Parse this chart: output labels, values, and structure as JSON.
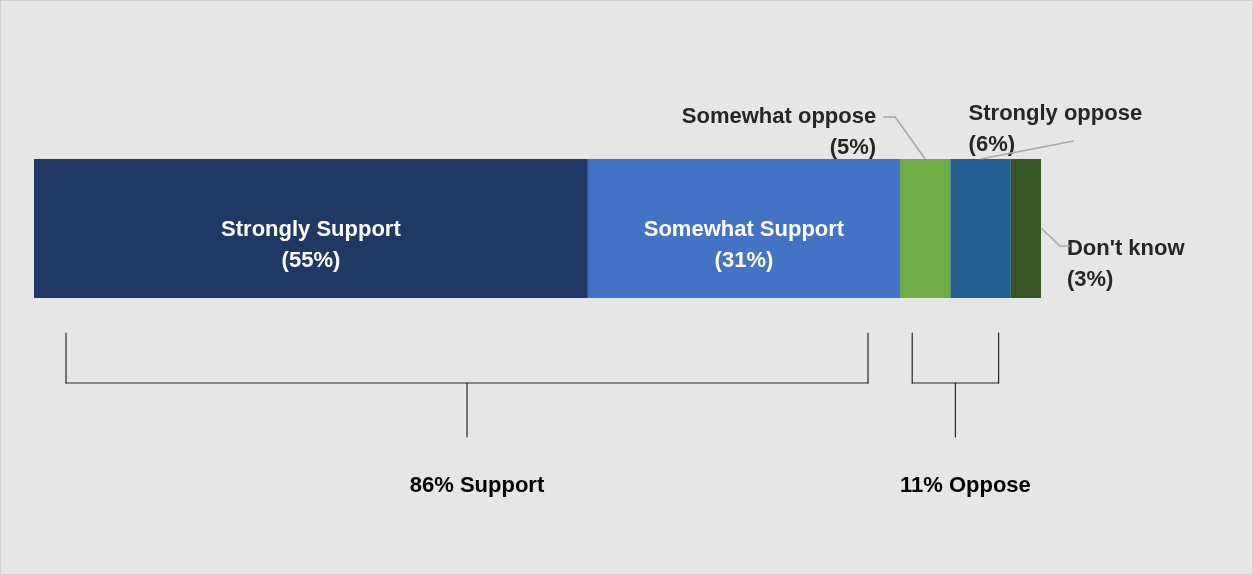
{
  "chart_data": {
    "type": "bar",
    "orientation": "horizontal",
    "stacked": true,
    "categories": [
      null
    ],
    "series": [
      {
        "name": "Strongly Support",
        "color": "#1f3864",
        "values": [
          55
        ],
        "value_labels": [
          "(55%)"
        ]
      },
      {
        "name": "Somewhat Support",
        "color": "#4472c4",
        "values": [
          31
        ],
        "value_labels": [
          "(31%)"
        ]
      },
      {
        "name": "Somewhat oppose",
        "color": "#70ad47",
        "values": [
          5
        ],
        "value_labels": [
          "(5%)"
        ]
      },
      {
        "name": "Strongly oppose",
        "color": "#255e91",
        "values": [
          6
        ],
        "value_labels": [
          "(6%)"
        ]
      },
      {
        "name": "Don't know",
        "color": "#375623",
        "values": [
          3
        ],
        "value_labels": [
          "(3%)"
        ]
      }
    ],
    "annotations": [
      "86% Support",
      "11% Oppose"
    ]
  }
}
